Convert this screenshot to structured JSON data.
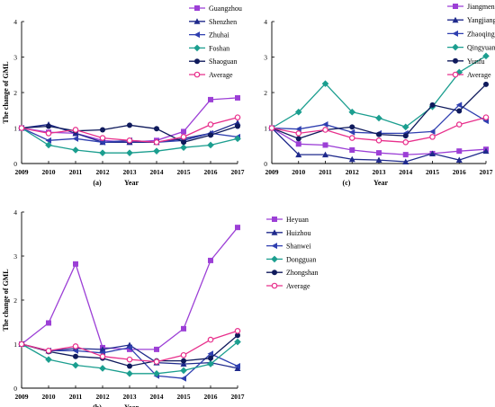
{
  "chart_data": [
    {
      "type": "line",
      "panel": "(a)",
      "xlabel": "Year",
      "ylabel": "The change of GML",
      "x": [
        2009,
        2010,
        2011,
        2012,
        2013,
        2014,
        2015,
        2016,
        2017
      ],
      "ylim": [
        0,
        4
      ],
      "yticks": [
        0,
        1,
        2,
        3,
        4
      ],
      "legend": "top-right",
      "grid": false,
      "series": [
        {
          "name": "Guangzhou",
          "color": "#9c3fd6",
          "marker": "square",
          "values": [
            1.0,
            0.88,
            0.85,
            0.65,
            0.6,
            0.65,
            0.9,
            1.8,
            1.85
          ]
        },
        {
          "name": "Shenzhen",
          "color": "#1f2a8c",
          "marker": "triangle-up",
          "values": [
            1.0,
            1.1,
            0.85,
            0.6,
            0.6,
            0.6,
            0.7,
            0.85,
            1.15
          ]
        },
        {
          "name": "Zhuhai",
          "color": "#2f3fb0",
          "marker": "triangle-left",
          "values": [
            1.0,
            0.65,
            0.7,
            0.6,
            0.65,
            0.6,
            0.65,
            0.85,
            0.75
          ]
        },
        {
          "name": "Foshan",
          "color": "#1b9e8f",
          "marker": "diamond",
          "values": [
            1.0,
            0.52,
            0.38,
            0.3,
            0.3,
            0.35,
            0.45,
            0.52,
            0.7
          ]
        },
        {
          "name": "Shaoguan",
          "color": "#0f1a5c",
          "marker": "circle",
          "values": [
            1.0,
            1.05,
            0.92,
            0.95,
            1.08,
            0.98,
            0.6,
            0.8,
            1.05
          ]
        },
        {
          "name": "Average",
          "color": "#e8308c",
          "marker": "circle-open",
          "values": [
            1.0,
            0.85,
            0.95,
            0.72,
            0.65,
            0.6,
            0.75,
            1.1,
            1.3
          ]
        }
      ]
    },
    {
      "type": "line",
      "panel": "(c)",
      "xlabel": "Year",
      "ylabel": "",
      "x": [
        2009,
        2010,
        2011,
        2012,
        2013,
        2014,
        2015,
        2016,
        2017
      ],
      "ylim": [
        0,
        4
      ],
      "yticks": [
        0,
        1,
        2,
        3,
        4
      ],
      "legend": "top-right",
      "grid": false,
      "series": [
        {
          "name": "Jiangmen",
          "color": "#9c3fd6",
          "marker": "square",
          "values": [
            1.0,
            0.55,
            0.52,
            0.38,
            0.3,
            0.25,
            0.28,
            0.35,
            0.4
          ]
        },
        {
          "name": "Yangjiang",
          "color": "#1f2a8c",
          "marker": "triangle-up",
          "values": [
            1.0,
            0.25,
            0.25,
            0.12,
            0.1,
            0.05,
            0.28,
            0.1,
            0.35
          ]
        },
        {
          "name": "Zhaoqing",
          "color": "#2f3fb0",
          "marker": "triangle-left",
          "values": [
            1.0,
            0.97,
            1.1,
            0.88,
            0.85,
            0.85,
            0.9,
            1.65,
            1.2
          ]
        },
        {
          "name": "Qingyuan",
          "color": "#1b9e8f",
          "marker": "diamond",
          "values": [
            1.0,
            1.45,
            2.25,
            1.45,
            1.28,
            1.03,
            1.6,
            2.57,
            3.03
          ]
        },
        {
          "name": "Yunfu",
          "color": "#0f1a5c",
          "marker": "circle",
          "values": [
            1.0,
            0.7,
            0.95,
            1.03,
            0.82,
            0.78,
            1.65,
            1.48,
            2.23
          ]
        },
        {
          "name": "Average",
          "color": "#e8308c",
          "marker": "circle-open",
          "values": [
            1.0,
            0.85,
            0.95,
            0.72,
            0.65,
            0.6,
            0.75,
            1.1,
            1.3
          ]
        }
      ]
    },
    {
      "type": "line",
      "panel": "(b)",
      "xlabel": "Year",
      "ylabel": "The change of GML",
      "x": [
        2009,
        2010,
        2011,
        2012,
        2013,
        2014,
        2015,
        2016,
        2017
      ],
      "ylim": [
        0,
        4
      ],
      "yticks": [
        0,
        1,
        2,
        3,
        4
      ],
      "legend": "top-right",
      "grid": false,
      "series": [
        {
          "name": "Heyuan",
          "color": "#9c3fd6",
          "marker": "square",
          "values": [
            1.0,
            1.48,
            2.82,
            0.92,
            0.88,
            0.88,
            1.35,
            2.9,
            3.65
          ]
        },
        {
          "name": "Huizhou",
          "color": "#1f2a8c",
          "marker": "triangle-up",
          "values": [
            1.0,
            0.85,
            0.9,
            0.88,
            0.98,
            0.58,
            0.55,
            0.58,
            0.45
          ]
        },
        {
          "name": "Shanwei",
          "color": "#2f3fb0",
          "marker": "triangle-left",
          "values": [
            1.0,
            0.85,
            0.85,
            0.8,
            0.92,
            0.28,
            0.22,
            0.78,
            0.5
          ]
        },
        {
          "name": "Dongguan",
          "color": "#1b9e8f",
          "marker": "diamond",
          "values": [
            1.0,
            0.65,
            0.52,
            0.45,
            0.33,
            0.33,
            0.4,
            0.55,
            1.05
          ]
        },
        {
          "name": "Zhongshan",
          "color": "#0f1a5c",
          "marker": "circle",
          "values": [
            1.0,
            0.83,
            0.72,
            0.68,
            0.5,
            0.62,
            0.62,
            0.68,
            1.2
          ]
        },
        {
          "name": "Average",
          "color": "#e8308c",
          "marker": "circle-open",
          "values": [
            1.0,
            0.85,
            0.95,
            0.72,
            0.65,
            0.6,
            0.75,
            1.1,
            1.3
          ]
        }
      ]
    }
  ]
}
